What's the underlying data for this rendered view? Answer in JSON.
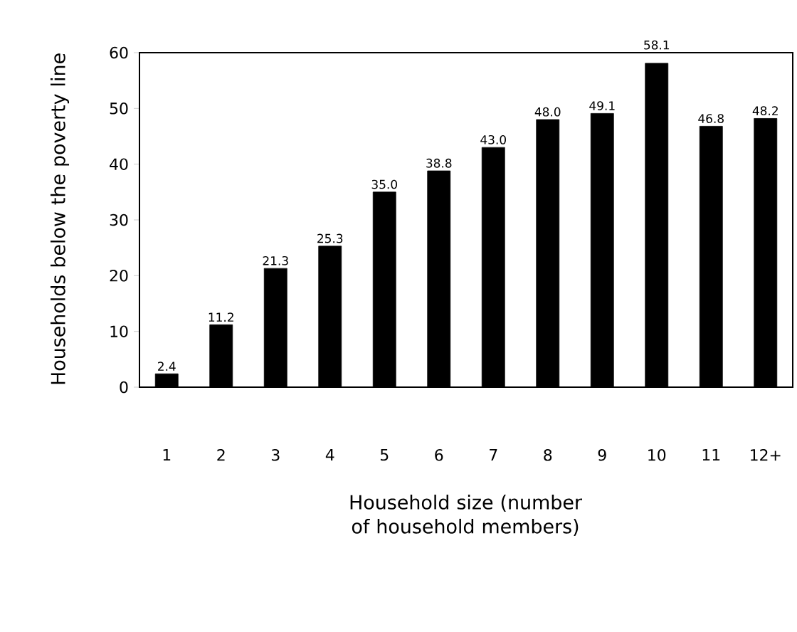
{
  "chart_data": {
    "type": "bar",
    "xlabel": "Household size (number of household members)",
    "ylabel": "Households below the poverty line",
    "categories": [
      "1",
      "2",
      "3",
      "4",
      "5",
      "6",
      "7",
      "8",
      "9",
      "10",
      "11",
      "12+"
    ],
    "values": [
      2.4,
      11.2,
      21.3,
      25.3,
      35.0,
      38.8,
      43.0,
      48.0,
      49.1,
      58.1,
      46.8,
      48.2
    ],
    "value_labels": [
      "2.4",
      "11.2",
      "21.3",
      "25.3",
      "35.0",
      "38.8",
      "43.0",
      "48.0",
      "49.1",
      "58.1",
      "46.8",
      "48.2"
    ],
    "color": "#000000",
    "ylim": [
      0,
      60
    ],
    "yticks": [
      0,
      10,
      20,
      30,
      40,
      50,
      60
    ],
    "grid": false
  }
}
